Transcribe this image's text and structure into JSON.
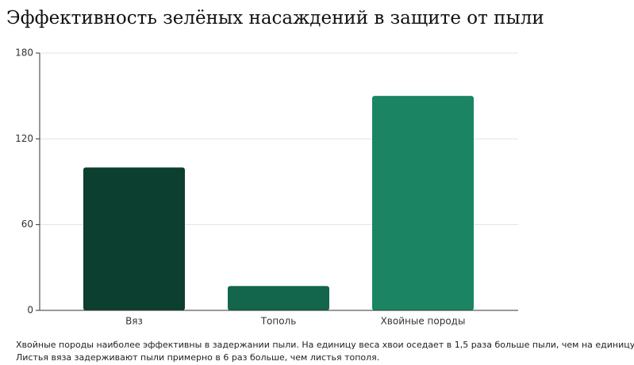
{
  "chart_data": {
    "type": "bar",
    "title": "Эффективность зелёных насаждений в защите от пыли",
    "categories": [
      "Вяз",
      "Тополь",
      "Хвойные породы"
    ],
    "values": [
      100,
      17,
      150
    ],
    "colors": [
      "#0c3f2f",
      "#13664b",
      "#1b8563"
    ],
    "ylim": [
      0,
      180
    ],
    "yticks": [
      0,
      60,
      120,
      180
    ],
    "grid": true,
    "caption": [
      "Хвойные породы наиболее эффективны в задержании пыли. На единицу веса хвои оседает в 1,5 раза больше пыли, чем на единицу веса листьев.",
      "Листья вяза задерживают пыли примерно в 6 раз больше, чем листья тополя."
    ]
  }
}
